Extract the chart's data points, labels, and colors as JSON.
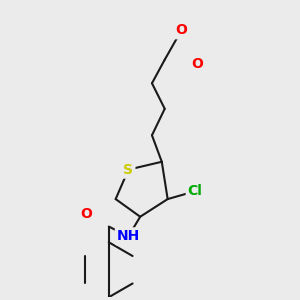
{
  "background_color": "#ebebeb",
  "bond_color": "#1a1a1a",
  "atom_colors": {
    "O": "#ff0000",
    "S": "#cccc00",
    "N": "#0000ff",
    "Cl": "#00aa00",
    "C": "#1a1a1a"
  },
  "font_size": 9,
  "fig_size": [
    3.0,
    3.0
  ],
  "dpi": 100
}
